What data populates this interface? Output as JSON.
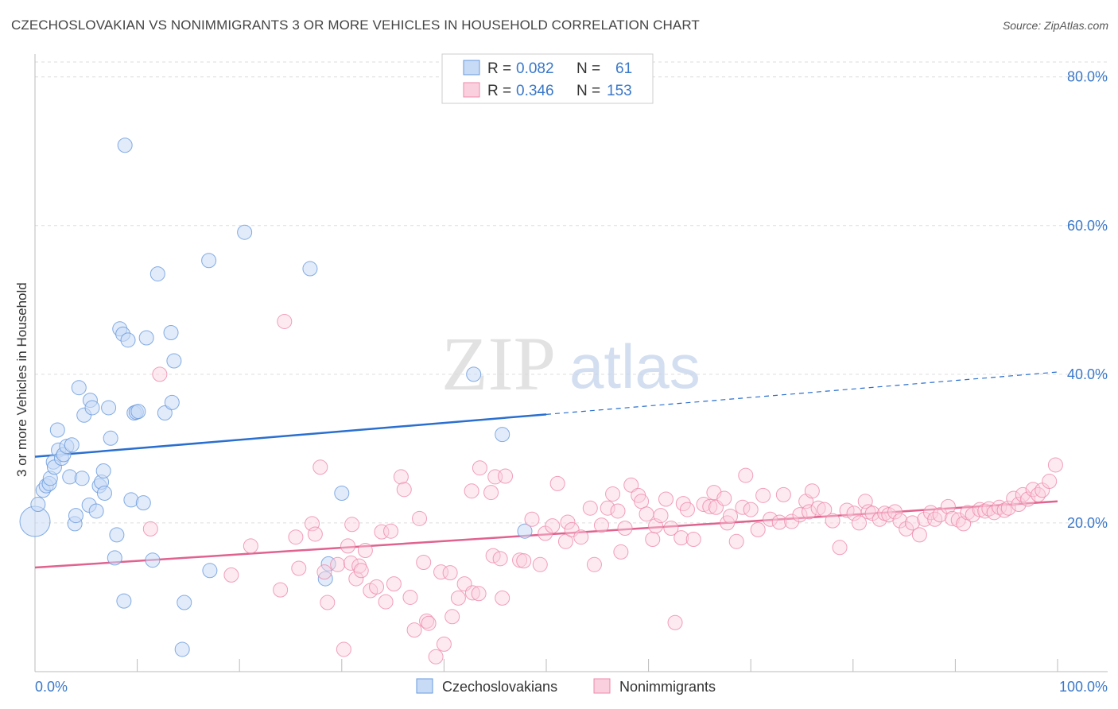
{
  "header": {
    "title": "CZECHOSLOVAKIAN VS NONIMMIGRANTS 3 OR MORE VEHICLES IN HOUSEHOLD CORRELATION CHART",
    "source": "Source: ZipAtlas.com"
  },
  "watermark": {
    "zip": "ZIP",
    "atlas": "atlas"
  },
  "legend_stats": [
    {
      "r_label": "R =",
      "r_value": "0.082",
      "n_label": "N =",
      "n_value": "61",
      "color": "#6699dd"
    },
    {
      "r_label": "R =",
      "r_value": "0.346",
      "n_label": "N =",
      "n_value": "153",
      "color": "#ee88aa"
    }
  ],
  "bottom_legend": [
    {
      "label": "Czechoslovakians",
      "color": "#6699dd"
    },
    {
      "label": "Nonimmigrants",
      "color": "#ee88aa"
    }
  ],
  "chart_data": {
    "type": "scatter",
    "title": "CZECHOSLOVAKIAN VS NONIMMIGRANTS 3 OR MORE VEHICLES IN HOUSEHOLD CORRELATION CHART",
    "xlabel": "",
    "ylabel": "3 or more Vehicles in Household",
    "xlim": [
      0,
      100
    ],
    "ylim": [
      0,
      82
    ],
    "x_tick_labels": [
      "0.0%",
      "100.0%"
    ],
    "y_ticks": [
      20,
      40,
      60,
      80
    ],
    "y_tick_labels": [
      "20.0%",
      "40.0%",
      "60.0%",
      "80.0%"
    ],
    "grid": true,
    "legend_position": "top-center",
    "series": [
      {
        "name": "Czechoslovakians",
        "color": "#6699dd",
        "trend": {
          "x0": 0,
          "y0": 28.9,
          "x1": 50,
          "y1": 34.6,
          "dashed_to_x": 100,
          "dashed_to_y": 40.3
        },
        "points": [
          [
            0.0,
            20.2
          ],
          [
            0.3,
            22.5
          ],
          [
            0.8,
            24.4
          ],
          [
            1.1,
            25.0
          ],
          [
            1.4,
            25.3
          ],
          [
            1.5,
            26.0
          ],
          [
            1.8,
            28.2
          ],
          [
            1.9,
            27.5
          ],
          [
            2.2,
            32.5
          ],
          [
            2.3,
            29.8
          ],
          [
            2.6,
            28.7
          ],
          [
            2.8,
            29.2
          ],
          [
            3.1,
            30.3
          ],
          [
            3.4,
            26.2
          ],
          [
            3.6,
            30.5
          ],
          [
            3.9,
            19.9
          ],
          [
            4.0,
            21.0
          ],
          [
            4.3,
            38.2
          ],
          [
            4.6,
            26.0
          ],
          [
            4.8,
            34.5
          ],
          [
            5.3,
            22.4
          ],
          [
            5.4,
            36.5
          ],
          [
            5.6,
            35.5
          ],
          [
            6.0,
            21.6
          ],
          [
            6.3,
            25.0
          ],
          [
            6.5,
            25.5
          ],
          [
            6.7,
            27.0
          ],
          [
            6.8,
            24.0
          ],
          [
            7.2,
            35.5
          ],
          [
            7.4,
            31.4
          ],
          [
            7.8,
            15.3
          ],
          [
            8.0,
            18.4
          ],
          [
            8.3,
            46.1
          ],
          [
            8.6,
            45.4
          ],
          [
            8.7,
            9.5
          ],
          [
            8.8,
            70.8
          ],
          [
            9.1,
            44.6
          ],
          [
            9.4,
            23.1
          ],
          [
            9.7,
            34.8
          ],
          [
            9.9,
            34.9
          ],
          [
            10.1,
            35.0
          ],
          [
            10.6,
            22.7
          ],
          [
            10.9,
            44.9
          ],
          [
            11.5,
            15.0
          ],
          [
            12.0,
            53.5
          ],
          [
            12.7,
            34.8
          ],
          [
            13.3,
            45.6
          ],
          [
            13.4,
            36.2
          ],
          [
            13.6,
            41.8
          ],
          [
            14.4,
            3.0
          ],
          [
            14.6,
            9.3
          ],
          [
            17.0,
            55.3
          ],
          [
            17.1,
            13.6
          ],
          [
            20.5,
            59.1
          ],
          [
            26.9,
            54.2
          ],
          [
            28.4,
            12.5
          ],
          [
            28.7,
            14.5
          ],
          [
            30.0,
            24.0
          ],
          [
            42.9,
            40.0
          ],
          [
            45.7,
            31.9
          ],
          [
            47.9,
            18.9
          ]
        ]
      },
      {
        "name": "Nonimmigrants",
        "color": "#ee88aa",
        "trend": {
          "x0": 0,
          "y0": 14.0,
          "x1": 100,
          "y1": 22.9
        },
        "points": [
          [
            11.3,
            19.2
          ],
          [
            12.2,
            40.0
          ],
          [
            19.2,
            13.0
          ],
          [
            21.1,
            16.9
          ],
          [
            24.0,
            11.0
          ],
          [
            24.4,
            47.1
          ],
          [
            25.5,
            18.1
          ],
          [
            25.8,
            13.9
          ],
          [
            27.1,
            19.9
          ],
          [
            27.4,
            18.5
          ],
          [
            27.9,
            27.5
          ],
          [
            28.3,
            13.4
          ],
          [
            28.6,
            9.3
          ],
          [
            29.6,
            14.4
          ],
          [
            30.2,
            3.0
          ],
          [
            30.6,
            16.9
          ],
          [
            30.9,
            14.6
          ],
          [
            31.0,
            19.8
          ],
          [
            31.4,
            12.5
          ],
          [
            31.7,
            14.2
          ],
          [
            31.9,
            13.6
          ],
          [
            32.3,
            16.3
          ],
          [
            32.8,
            10.9
          ],
          [
            33.4,
            11.4
          ],
          [
            33.9,
            18.8
          ],
          [
            34.3,
            9.4
          ],
          [
            34.8,
            18.9
          ],
          [
            35.1,
            11.8
          ],
          [
            35.8,
            26.2
          ],
          [
            36.1,
            24.5
          ],
          [
            36.7,
            10.0
          ],
          [
            37.1,
            5.6
          ],
          [
            37.6,
            20.6
          ],
          [
            38.0,
            14.7
          ],
          [
            38.3,
            6.8
          ],
          [
            38.5,
            6.5
          ],
          [
            39.2,
            2.0
          ],
          [
            39.7,
            13.4
          ],
          [
            40.0,
            3.7
          ],
          [
            40.6,
            13.3
          ],
          [
            40.8,
            7.4
          ],
          [
            41.4,
            9.9
          ],
          [
            42.0,
            11.8
          ],
          [
            42.7,
            24.3
          ],
          [
            42.8,
            10.6
          ],
          [
            43.4,
            10.5
          ],
          [
            43.5,
            27.4
          ],
          [
            44.6,
            24.1
          ],
          [
            44.8,
            15.6
          ],
          [
            45.0,
            26.2
          ],
          [
            45.5,
            15.2
          ],
          [
            45.7,
            9.9
          ],
          [
            46.0,
            26.3
          ],
          [
            47.4,
            15.0
          ],
          [
            47.8,
            14.9
          ],
          [
            48.6,
            20.5
          ],
          [
            49.4,
            14.4
          ],
          [
            49.9,
            18.6
          ],
          [
            50.6,
            19.6
          ],
          [
            51.1,
            25.3
          ],
          [
            51.9,
            17.5
          ],
          [
            52.1,
            20.1
          ],
          [
            52.5,
            19.1
          ],
          [
            53.4,
            18.1
          ],
          [
            54.3,
            22.0
          ],
          [
            54.7,
            14.4
          ],
          [
            55.4,
            19.7
          ],
          [
            56.0,
            22.0
          ],
          [
            56.5,
            23.9
          ],
          [
            57.0,
            21.6
          ],
          [
            57.3,
            16.1
          ],
          [
            57.7,
            19.3
          ],
          [
            58.3,
            25.1
          ],
          [
            59.0,
            23.7
          ],
          [
            59.3,
            22.9
          ],
          [
            59.8,
            21.2
          ],
          [
            60.4,
            17.8
          ],
          [
            60.7,
            19.6
          ],
          [
            61.2,
            21.0
          ],
          [
            61.7,
            23.2
          ],
          [
            62.2,
            19.3
          ],
          [
            62.6,
            6.6
          ],
          [
            63.2,
            18.0
          ],
          [
            63.4,
            22.6
          ],
          [
            63.8,
            21.8
          ],
          [
            64.4,
            17.8
          ],
          [
            65.4,
            22.5
          ],
          [
            66.0,
            22.2
          ],
          [
            66.4,
            24.1
          ],
          [
            66.6,
            22.1
          ],
          [
            67.4,
            23.3
          ],
          [
            67.7,
            20.0
          ],
          [
            68.0,
            20.9
          ],
          [
            68.6,
            17.5
          ],
          [
            69.2,
            22.1
          ],
          [
            69.5,
            26.4
          ],
          [
            70.0,
            21.8
          ],
          [
            70.7,
            19.1
          ],
          [
            71.2,
            23.7
          ],
          [
            71.9,
            20.5
          ],
          [
            72.8,
            20.1
          ],
          [
            73.2,
            23.8
          ],
          [
            74.0,
            20.2
          ],
          [
            74.8,
            21.1
          ],
          [
            75.4,
            22.9
          ],
          [
            75.7,
            21.5
          ],
          [
            76.0,
            24.3
          ],
          [
            76.6,
            22.0
          ],
          [
            77.2,
            21.8
          ],
          [
            78.0,
            20.3
          ],
          [
            78.7,
            16.7
          ],
          [
            79.4,
            21.7
          ],
          [
            80.1,
            21.3
          ],
          [
            80.6,
            20.0
          ],
          [
            81.2,
            22.9
          ],
          [
            81.5,
            21.5
          ],
          [
            81.9,
            21.3
          ],
          [
            82.6,
            20.5
          ],
          [
            83.1,
            21.3
          ],
          [
            83.5,
            21.1
          ],
          [
            84.1,
            21.5
          ],
          [
            84.6,
            20.3
          ],
          [
            85.2,
            19.2
          ],
          [
            85.8,
            20.0
          ],
          [
            86.5,
            18.4
          ],
          [
            87.0,
            20.5
          ],
          [
            87.6,
            21.4
          ],
          [
            88.0,
            20.5
          ],
          [
            88.5,
            21.1
          ],
          [
            89.3,
            22.2
          ],
          [
            89.7,
            20.6
          ],
          [
            90.3,
            20.4
          ],
          [
            90.8,
            19.9
          ],
          [
            91.2,
            21.4
          ],
          [
            91.7,
            21.1
          ],
          [
            92.4,
            21.8
          ],
          [
            92.9,
            21.6
          ],
          [
            93.3,
            21.9
          ],
          [
            93.8,
            21.4
          ],
          [
            94.3,
            22.1
          ],
          [
            94.8,
            21.7
          ],
          [
            95.2,
            22.0
          ],
          [
            95.7,
            23.3
          ],
          [
            96.2,
            22.5
          ],
          [
            96.6,
            23.8
          ],
          [
            97.1,
            23.2
          ],
          [
            97.6,
            24.5
          ],
          [
            98.1,
            23.8
          ],
          [
            98.5,
            24.4
          ],
          [
            99.2,
            25.6
          ],
          [
            99.8,
            27.8
          ]
        ]
      }
    ]
  }
}
